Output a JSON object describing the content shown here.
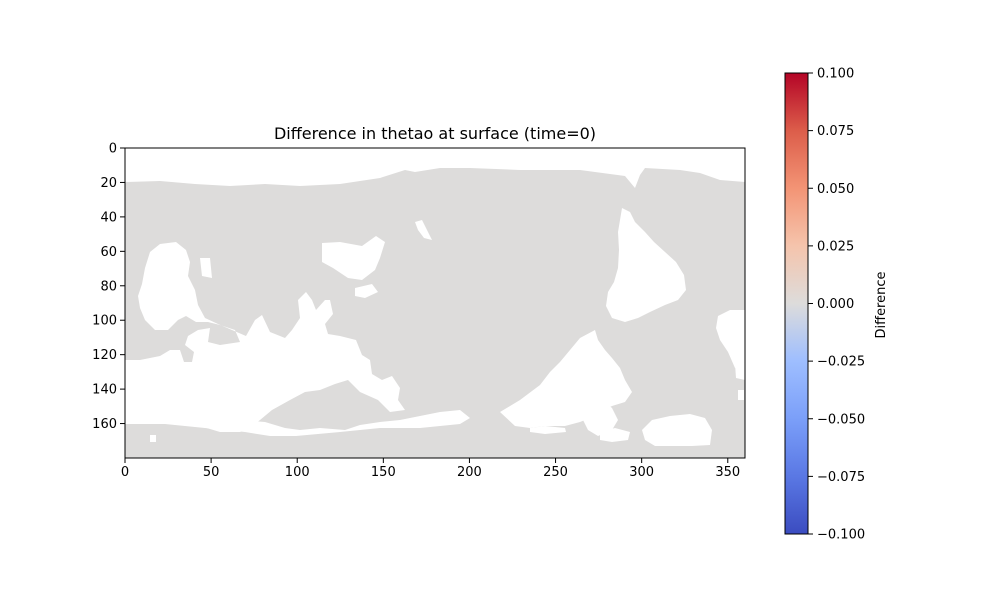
{
  "chart_data": {
    "type": "heatmap",
    "title": "Difference in thetao at surface (time=0)",
    "xlabel": "",
    "ylabel": "",
    "x_ticks": [
      0,
      50,
      100,
      150,
      200,
      250,
      300,
      350
    ],
    "y_ticks": [
      0,
      20,
      40,
      60,
      80,
      100,
      120,
      140,
      160
    ],
    "xlim": [
      0,
      360
    ],
    "ylim": [
      180,
      0
    ],
    "field_value_ocean": 0.0,
    "land_masked": true,
    "colormap": "coolwarm",
    "colorbar": {
      "label": "Difference",
      "vmin": -0.1,
      "vmax": 0.1,
      "ticks": [
        0.1,
        0.075,
        0.05,
        0.025,
        0.0,
        -0.025,
        -0.05,
        -0.075,
        -0.1
      ],
      "tick_labels": [
        "0.100",
        "0.075",
        "0.050",
        "0.025",
        "0.000",
        "−0.025",
        "−0.050",
        "−0.075",
        "−0.100"
      ]
    },
    "colors": {
      "ocean": "#dddcdb",
      "land": "#ffffff",
      "cmap_low": "#3b4cc0",
      "cmap_mid": "#dddcdb",
      "cmap_high": "#b40426"
    },
    "grid": false
  }
}
